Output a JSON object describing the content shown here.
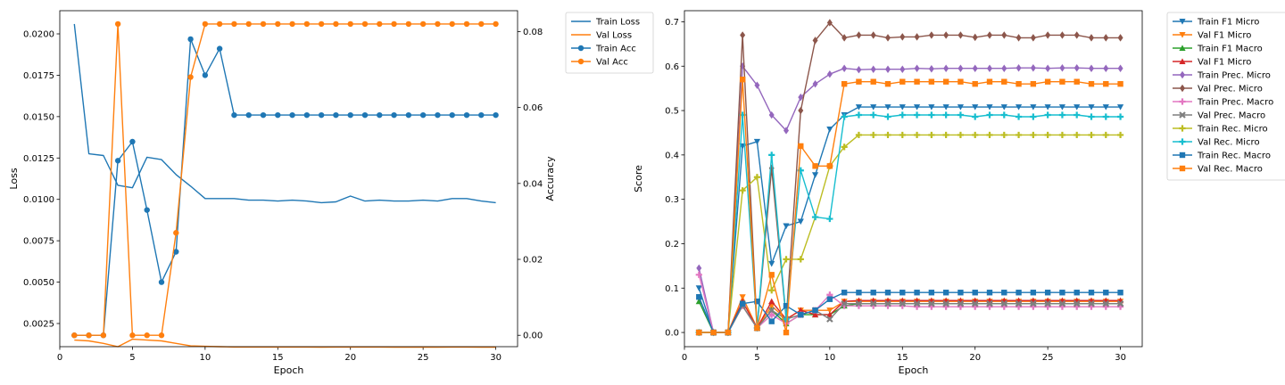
{
  "chart_data": [
    {
      "type": "line",
      "dual_axis": true,
      "xlabel": "Epoch",
      "ylabel": "Loss",
      "ylabel_right": "Accuracy",
      "xlim": [
        0,
        31.5
      ],
      "ylim": [
        0.0011,
        0.0214
      ],
      "ylim_right": [
        -0.003,
        0.0855
      ],
      "x_ticks": [
        "0",
        "5",
        "10",
        "15",
        "20",
        "25",
        "30"
      ],
      "y_ticks": [
        "0.0025",
        "0.0050",
        "0.0075",
        "0.0100",
        "0.0125",
        "0.0150",
        "0.0175",
        "0.0200"
      ],
      "y_ticks_right": [
        "0.00",
        "0.02",
        "0.04",
        "0.06",
        "0.08"
      ],
      "legend_position": "outside-right",
      "x": [
        1,
        2,
        3,
        4,
        5,
        6,
        7,
        8,
        9,
        10,
        11,
        12,
        13,
        14,
        15,
        16,
        17,
        18,
        19,
        20,
        21,
        22,
        23,
        24,
        25,
        26,
        27,
        28,
        29,
        30
      ],
      "series": [
        {
          "name": "Train Loss",
          "axis": "left",
          "color": "#1f77b4",
          "marker": "none",
          "values": [
            0.0206,
            0.01275,
            0.01265,
            0.01085,
            0.0107,
            0.01255,
            0.0124,
            0.0115,
            0.0108,
            0.01005,
            0.01005,
            0.01005,
            0.00995,
            0.00995,
            0.0099,
            0.00995,
            0.0099,
            0.0098,
            0.00985,
            0.0102,
            0.0099,
            0.00995,
            0.0099,
            0.0099,
            0.00995,
            0.0099,
            0.01005,
            0.01005,
            0.0099,
            0.0098
          ]
        },
        {
          "name": "Val Loss",
          "axis": "left",
          "color": "#ff7f0e",
          "marker": "none",
          "values": [
            0.0015,
            0.00145,
            0.0013,
            0.0011,
            0.00155,
            0.0015,
            0.00145,
            0.0013,
            0.00115,
            0.00112,
            0.0011,
            0.00108,
            0.00108,
            0.00108,
            0.00108,
            0.00108,
            0.00108,
            0.00107,
            0.00108,
            0.00108,
            0.00108,
            0.00108,
            0.00107,
            0.00107,
            0.00108,
            0.00107,
            0.00108,
            0.00108,
            0.00107,
            0.00107
          ]
        },
        {
          "name": "Train Acc",
          "axis": "right",
          "color": "#1f77b4",
          "marker": "circle",
          "values": [
            0,
            0,
            0,
            0.046,
            0.051,
            0.033,
            0.014,
            0.022,
            0.078,
            0.0685,
            0.0755,
            0.058,
            0.058,
            0.058,
            0.058,
            0.058,
            0.058,
            0.058,
            0.058,
            0.058,
            0.058,
            0.058,
            0.058,
            0.058,
            0.058,
            0.058,
            0.058,
            0.058,
            0.058,
            0.058
          ]
        },
        {
          "name": "Val Acc",
          "axis": "right",
          "color": "#ff7f0e",
          "marker": "circle",
          "values": [
            0,
            0,
            0,
            0.082,
            0,
            0,
            0,
            0.027,
            0.068,
            0.082,
            0.082,
            0.082,
            0.082,
            0.082,
            0.082,
            0.082,
            0.082,
            0.082,
            0.082,
            0.082,
            0.082,
            0.082,
            0.082,
            0.082,
            0.082,
            0.082,
            0.082,
            0.082,
            0.082,
            0.082
          ]
        }
      ]
    },
    {
      "type": "line",
      "xlabel": "Epoch",
      "ylabel": "Score",
      "xlim": [
        0,
        31.5
      ],
      "ylim": [
        -0.032,
        0.725
      ],
      "x_ticks": [
        "0",
        "5",
        "10",
        "15",
        "20",
        "25",
        "30"
      ],
      "y_ticks": [
        "0.0",
        "0.1",
        "0.2",
        "0.3",
        "0.4",
        "0.5",
        "0.6",
        "0.7"
      ],
      "legend_position": "outside-right",
      "x": [
        1,
        2,
        3,
        4,
        5,
        6,
        7,
        8,
        9,
        10,
        11,
        12,
        13,
        14,
        15,
        16,
        17,
        18,
        19,
        20,
        21,
        22,
        23,
        24,
        25,
        26,
        27,
        28,
        29,
        30
      ],
      "series": [
        {
          "name": "Train F1 Micro",
          "color": "#1f77b4",
          "marker": "tri_down",
          "values": [
            0.1,
            0,
            0,
            0.42,
            0.43,
            0.155,
            0.24,
            0.25,
            0.355,
            0.458,
            0.49,
            0.508,
            0.508,
            0.508,
            0.508,
            0.508,
            0.508,
            0.508,
            0.508,
            0.508,
            0.508,
            0.508,
            0.508,
            0.508,
            0.508,
            0.508,
            0.508,
            0.508,
            0.508,
            0.508
          ]
        },
        {
          "name": "Val F1 Micro",
          "color": "#ff7f0e",
          "marker": "tri_down",
          "values": [
            0,
            0,
            0,
            0.08,
            0.01,
            0.06,
            0.03,
            0.05,
            0.05,
            0.05,
            0.07,
            0.07,
            0.07,
            0.07,
            0.07,
            0.07,
            0.07,
            0.07,
            0.07,
            0.07,
            0.07,
            0.07,
            0.07,
            0.07,
            0.07,
            0.07,
            0.07,
            0.07,
            0.07,
            0.07
          ]
        },
        {
          "name": "Train F1 Macro",
          "color": "#2ca02c",
          "marker": "tri_up",
          "values": [
            0.07,
            0,
            0,
            0.06,
            0.01,
            0.05,
            0.02,
            0.04,
            0.04,
            0.04,
            0.06,
            0.065,
            0.065,
            0.065,
            0.065,
            0.065,
            0.065,
            0.065,
            0.065,
            0.065,
            0.065,
            0.065,
            0.065,
            0.065,
            0.065,
            0.065,
            0.065,
            0.065,
            0.065,
            0.065
          ]
        },
        {
          "name": "Val F1 Micro",
          "color": "#d62728",
          "marker": "tri_up",
          "values": [
            0,
            0,
            0,
            0.07,
            0.01,
            0.07,
            0.03,
            0.05,
            0.04,
            0.04,
            0.07,
            0.072,
            0.072,
            0.072,
            0.072,
            0.072,
            0.072,
            0.072,
            0.072,
            0.072,
            0.072,
            0.072,
            0.072,
            0.072,
            0.072,
            0.072,
            0.072,
            0.072,
            0.072,
            0.072
          ]
        },
        {
          "name": "Train Prec. Micro",
          "color": "#9467bd",
          "marker": "diamond",
          "values": [
            0.145,
            0,
            0,
            0.6,
            0.557,
            0.49,
            0.455,
            0.53,
            0.56,
            0.582,
            0.595,
            0.592,
            0.593,
            0.593,
            0.593,
            0.595,
            0.594,
            0.595,
            0.595,
            0.595,
            0.595,
            0.595,
            0.596,
            0.596,
            0.595,
            0.596,
            0.596,
            0.595,
            0.595,
            0.595
          ]
        },
        {
          "name": "Val Prec. Micro",
          "color": "#8c564b",
          "marker": "diamond",
          "values": [
            0,
            0,
            0,
            0.67,
            0.01,
            0.37,
            0.03,
            0.5,
            0.658,
            0.698,
            0.664,
            0.67,
            0.67,
            0.664,
            0.666,
            0.666,
            0.67,
            0.67,
            0.67,
            0.665,
            0.67,
            0.67,
            0.664,
            0.664,
            0.67,
            0.67,
            0.67,
            0.664,
            0.664,
            0.664
          ]
        },
        {
          "name": "Train Prec. Macro",
          "color": "#e377c2",
          "marker": "plus",
          "values": [
            0.13,
            0,
            0,
            0.06,
            0.01,
            0.04,
            0.02,
            0.04,
            0.05,
            0.085,
            0.06,
            0.06,
            0.06,
            0.06,
            0.06,
            0.058,
            0.058,
            0.058,
            0.058,
            0.058,
            0.058,
            0.058,
            0.058,
            0.058,
            0.058,
            0.058,
            0.058,
            0.058,
            0.058,
            0.058
          ]
        },
        {
          "name": "Val Prec. Macro",
          "color": "#7f7f7f",
          "marker": "x",
          "values": [
            0,
            0,
            0,
            0.06,
            0.01,
            0.05,
            0.03,
            0.04,
            0.05,
            0.03,
            0.065,
            0.065,
            0.065,
            0.065,
            0.065,
            0.065,
            0.065,
            0.065,
            0.065,
            0.065,
            0.065,
            0.065,
            0.065,
            0.065,
            0.065,
            0.065,
            0.065,
            0.065,
            0.065,
            0.065
          ]
        },
        {
          "name": "Train Rec. Micro",
          "color": "#bcbd22",
          "marker": "plus",
          "values": [
            0,
            0,
            0,
            0.32,
            0.35,
            0.095,
            0.165,
            0.165,
            0.26,
            0.375,
            0.418,
            0.445,
            0.445,
            0.445,
            0.445,
            0.445,
            0.445,
            0.445,
            0.445,
            0.445,
            0.445,
            0.445,
            0.445,
            0.445,
            0.445,
            0.445,
            0.445,
            0.445,
            0.445,
            0.445
          ]
        },
        {
          "name": "Val Rec. Micro",
          "color": "#17becf",
          "marker": "plus",
          "values": [
            0,
            0,
            0,
            0.49,
            0.01,
            0.4,
            0.03,
            0.365,
            0.26,
            0.256,
            0.486,
            0.49,
            0.49,
            0.486,
            0.49,
            0.49,
            0.49,
            0.49,
            0.49,
            0.486,
            0.49,
            0.49,
            0.486,
            0.486,
            0.49,
            0.49,
            0.49,
            0.486,
            0.486,
            0.486
          ]
        },
        {
          "name": "Train Rec. Macro",
          "color": "#1f77b4",
          "marker": "square",
          "values": [
            0.08,
            0,
            0,
            0.065,
            0.07,
            0.025,
            0.06,
            0.04,
            0.05,
            0.075,
            0.09,
            0.09,
            0.09,
            0.09,
            0.09,
            0.09,
            0.09,
            0.09,
            0.09,
            0.09,
            0.09,
            0.09,
            0.09,
            0.09,
            0.09,
            0.09,
            0.09,
            0.09,
            0.09,
            0.09
          ]
        },
        {
          "name": "Val Rec. Macro",
          "color": "#ff7f0e",
          "marker": "square",
          "values": [
            0,
            0,
            0,
            0.57,
            0.01,
            0.13,
            0,
            0.42,
            0.375,
            0.375,
            0.56,
            0.565,
            0.565,
            0.56,
            0.565,
            0.565,
            0.565,
            0.565,
            0.565,
            0.56,
            0.565,
            0.565,
            0.56,
            0.56,
            0.565,
            0.565,
            0.565,
            0.56,
            0.56,
            0.56
          ]
        }
      ]
    }
  ]
}
